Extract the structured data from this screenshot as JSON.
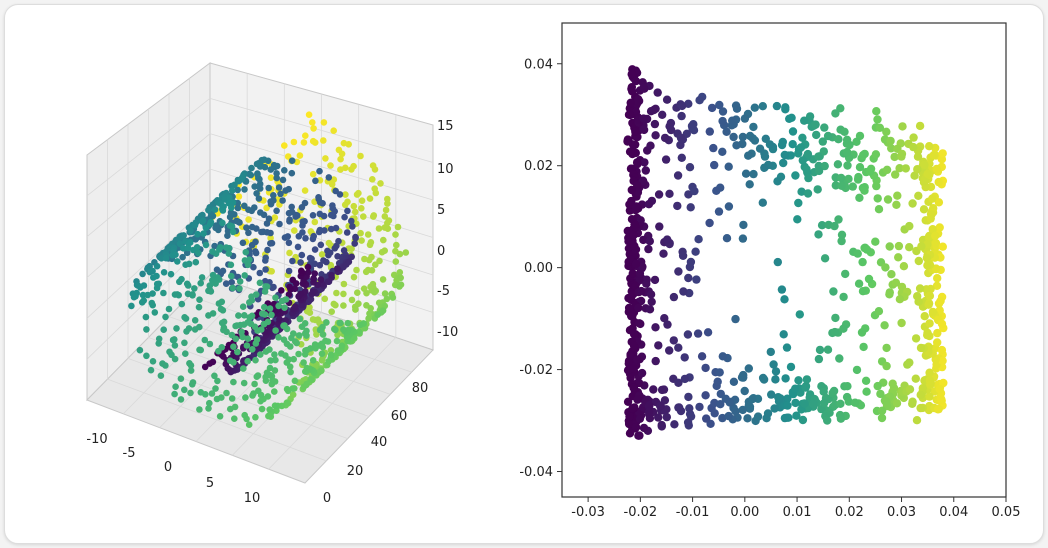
{
  "chart_data": [
    {
      "type": "scatter",
      "title": "",
      "projection": "3d",
      "colormap": "viridis",
      "grid": true,
      "x_ticks": [
        "-10",
        "-5",
        "0",
        "5",
        "10"
      ],
      "y_ticks": [
        "0",
        "20",
        "40",
        "60",
        "80"
      ],
      "z_ticks": [
        "15",
        "10",
        "5",
        "0",
        "-5",
        "-10"
      ],
      "xlim": [
        -11,
        13
      ],
      "ylim": [
        0,
        90
      ],
      "zlim": [
        -12,
        16
      ]
    },
    {
      "type": "scatter",
      "title": "",
      "colormap": "viridis",
      "grid": false,
      "x_ticks": [
        "-0.03",
        "-0.02",
        "-0.01",
        "0.00",
        "0.01",
        "0.02",
        "0.03",
        "0.04",
        "0.05"
      ],
      "y_ticks": [
        "0.04",
        "0.02",
        "0.00",
        "-0.02",
        "-0.04"
      ],
      "xlim": [
        -0.035,
        0.05
      ],
      "ylim": [
        -0.045,
        0.048
      ]
    }
  ],
  "colors": {
    "viridis_dark": "#440154",
    "viridis_mid": "#21918c",
    "viridis_light": "#fde725"
  }
}
